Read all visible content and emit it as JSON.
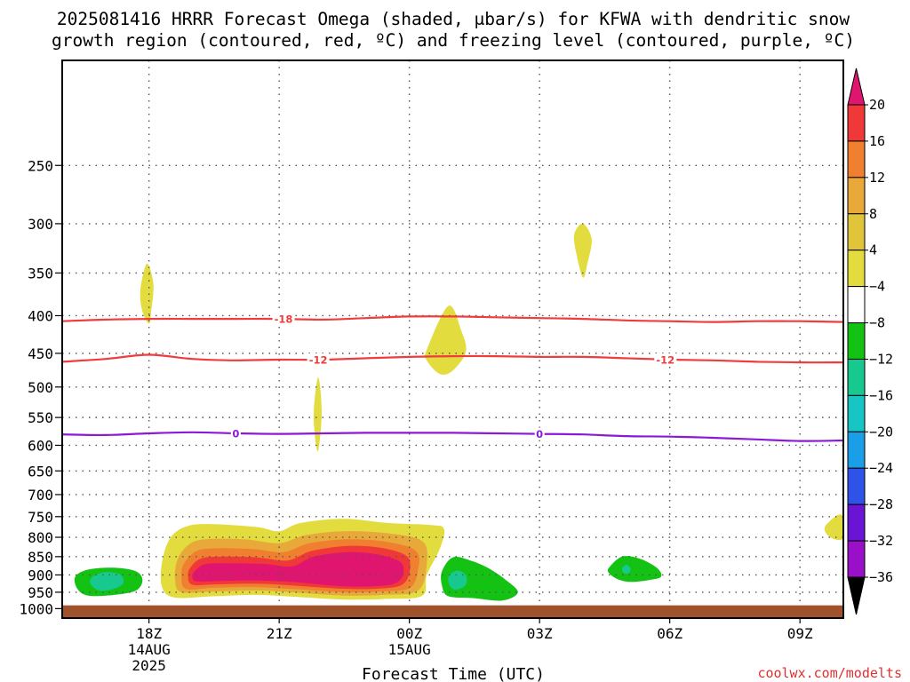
{
  "title_line1": "2025081416 HRRR Forecast Omega (shaded, μbar/s) for KFWA with dendritic snow",
  "title_line2": "growth region (contoured, red, ºC) and freezing level (contoured, purple, ºC)",
  "credit": "coolwx.com/modelts",
  "chart_data": {
    "type": "heatmap",
    "xlabel": "Forecast Time (UTC)",
    "ylabel": "",
    "x_ticks": [
      {
        "hour": 2,
        "label": "18Z",
        "sub1": "14AUG",
        "sub2": "2025"
      },
      {
        "hour": 5,
        "label": "21Z",
        "sub1": "",
        "sub2": ""
      },
      {
        "hour": 8,
        "label": "00Z",
        "sub1": "15AUG",
        "sub2": ""
      },
      {
        "hour": 11,
        "label": "03Z",
        "sub1": "",
        "sub2": ""
      },
      {
        "hour": 14,
        "label": "06Z",
        "sub1": "",
        "sub2": ""
      },
      {
        "hour": 17,
        "label": "09Z",
        "sub1": "",
        "sub2": ""
      }
    ],
    "xlim_hours": [
      0,
      18
    ],
    "y_axis": "pressure (hPa), log scale, inverted",
    "ylim_hPa": [
      1030,
      180
    ],
    "y_ticks": [
      250,
      300,
      350,
      400,
      450,
      500,
      550,
      600,
      650,
      700,
      750,
      800,
      850,
      900,
      950,
      1000
    ],
    "ground_below_hPa": 990,
    "grid": true,
    "colorbar": {
      "unit": "μbar/s",
      "labels": [
        "20",
        "16",
        "12",
        "8",
        "4",
        "−4",
        "−8",
        "−12",
        "−16",
        "−20",
        "−24",
        "−28",
        "−32",
        "−36"
      ],
      "colors": [
        "#e0156f",
        "#f03838",
        "#f07f2f",
        "#e8a93a",
        "#e0c53a",
        "#e3dc3e",
        "#ffffff",
        "#13c213",
        "#17c98e",
        "#18c5c5",
        "#1b9ee8",
        "#2f52e8",
        "#6a15d5",
        "#9a10c8",
        "#a9a9a9",
        "#000000"
      ]
    },
    "contours": [
      {
        "label": "-18",
        "color": "#f03c3c",
        "points": [
          [
            0,
            407
          ],
          [
            1,
            405
          ],
          [
            2,
            404
          ],
          [
            3,
            404
          ],
          [
            4,
            404
          ],
          [
            5,
            404
          ],
          [
            6,
            405
          ],
          [
            7,
            403
          ],
          [
            8,
            401
          ],
          [
            9,
            401
          ],
          [
            10,
            402
          ],
          [
            11,
            403
          ],
          [
            12,
            404
          ],
          [
            13,
            406
          ],
          [
            14,
            407
          ],
          [
            15,
            408
          ],
          [
            16,
            407
          ],
          [
            17,
            407
          ],
          [
            18,
            408
          ]
        ],
        "label_at": [
          5.1
        ]
      },
      {
        "label": "-12",
        "color": "#f03c3c",
        "points": [
          [
            0,
            462
          ],
          [
            1,
            458
          ],
          [
            2,
            452
          ],
          [
            3,
            458
          ],
          [
            4,
            460
          ],
          [
            5,
            459
          ],
          [
            6,
            459
          ],
          [
            7,
            457
          ],
          [
            8,
            455
          ],
          [
            9,
            454
          ],
          [
            10,
            454
          ],
          [
            11,
            455
          ],
          [
            12,
            455
          ],
          [
            13,
            457
          ],
          [
            14,
            459
          ],
          [
            15,
            460
          ],
          [
            16,
            462
          ],
          [
            17,
            463
          ],
          [
            18,
            463
          ]
        ],
        "label_at": [
          5.9,
          13.9
        ]
      },
      {
        "label": "0",
        "color": "#8b1ad6",
        "points": [
          [
            0,
            580
          ],
          [
            1,
            581
          ],
          [
            2,
            578
          ],
          [
            3,
            576
          ],
          [
            4,
            578
          ],
          [
            5,
            579
          ],
          [
            6,
            578
          ],
          [
            7,
            577
          ],
          [
            8,
            577
          ],
          [
            9,
            577
          ],
          [
            10,
            578
          ],
          [
            11,
            579
          ],
          [
            12,
            580
          ],
          [
            13,
            583
          ],
          [
            14,
            584
          ],
          [
            15,
            586
          ],
          [
            16,
            589
          ],
          [
            17,
            592
          ],
          [
            18,
            591
          ]
        ],
        "label_at": [
          4.0,
          11.0
        ]
      }
    ],
    "omega_regions": [
      {
        "level": "4",
        "color": "#e3dc3e",
        "points": [
          [
            1.8,
            370
          ],
          [
            1.95,
            340
          ],
          [
            2.1,
            362
          ],
          [
            2.05,
            395
          ],
          [
            2.0,
            410
          ],
          [
            1.85,
            395
          ]
        ]
      },
      {
        "level": "4",
        "color": "#e3dc3e",
        "points": [
          [
            5.8,
            535
          ],
          [
            5.9,
            485
          ],
          [
            5.98,
            540
          ],
          [
            5.9,
            610
          ],
          [
            5.82,
            580
          ]
        ]
      },
      {
        "level": "4",
        "color": "#e3dc3e",
        "points": [
          [
            8.4,
            445
          ],
          [
            8.9,
            388
          ],
          [
            9.2,
            420
          ],
          [
            9.3,
            448
          ],
          [
            9.0,
            475
          ],
          [
            8.7,
            480
          ],
          [
            8.4,
            460
          ]
        ]
      },
      {
        "level": "4",
        "color": "#e3dc3e",
        "points": [
          [
            11.8,
            310
          ],
          [
            12.0,
            300
          ],
          [
            12.2,
            315
          ],
          [
            12.1,
            340
          ],
          [
            12.0,
            355
          ],
          [
            11.85,
            330
          ]
        ]
      },
      {
        "level": "4",
        "color": "#e3dc3e",
        "points": [
          [
            17.6,
            770
          ],
          [
            17.95,
            745
          ],
          [
            18,
            800
          ],
          [
            17.8,
            805
          ],
          [
            17.6,
            790
          ]
        ]
      },
      {
        "level": "4",
        "color": "#e3dc3e",
        "points": [
          [
            2.3,
            865
          ],
          [
            2.5,
            800
          ],
          [
            2.9,
            772
          ],
          [
            3.5,
            768
          ],
          [
            4.5,
            775
          ],
          [
            5.0,
            785
          ],
          [
            5.5,
            765
          ],
          [
            6.5,
            755
          ],
          [
            7.5,
            765
          ],
          [
            8.5,
            770
          ],
          [
            8.8,
            780
          ],
          [
            8.7,
            830
          ],
          [
            8.4,
            900
          ],
          [
            8.3,
            960
          ],
          [
            7.5,
            970
          ],
          [
            6.5,
            972
          ],
          [
            5.5,
            965
          ],
          [
            4.5,
            958
          ],
          [
            3.5,
            962
          ],
          [
            2.6,
            966
          ],
          [
            2.3,
            935
          ]
        ]
      },
      {
        "level": "8",
        "color": "#e8a93a",
        "points": [
          [
            2.65,
            860
          ],
          [
            2.9,
            820
          ],
          [
            3.3,
            805
          ],
          [
            4.2,
            805
          ],
          [
            5.0,
            815
          ],
          [
            5.6,
            795
          ],
          [
            6.5,
            785
          ],
          [
            7.5,
            790
          ],
          [
            8.3,
            810
          ],
          [
            8.4,
            870
          ],
          [
            8.2,
            945
          ],
          [
            7.4,
            958
          ],
          [
            6.5,
            960
          ],
          [
            5.5,
            952
          ],
          [
            4.5,
            945
          ],
          [
            3.5,
            948
          ],
          [
            2.75,
            950
          ],
          [
            2.6,
            915
          ]
        ]
      },
      {
        "level": "12",
        "color": "#f07f2f",
        "points": [
          [
            2.8,
            870
          ],
          [
            3.1,
            835
          ],
          [
            3.6,
            828
          ],
          [
            4.4,
            830
          ],
          [
            5.1,
            838
          ],
          [
            5.7,
            815
          ],
          [
            6.6,
            805
          ],
          [
            7.5,
            812
          ],
          [
            8.15,
            835
          ],
          [
            8.2,
            885
          ],
          [
            8.0,
            938
          ],
          [
            7.3,
            948
          ],
          [
            6.5,
            950
          ],
          [
            5.5,
            942
          ],
          [
            4.5,
            935
          ],
          [
            3.5,
            937
          ],
          [
            2.85,
            940
          ],
          [
            2.75,
            905
          ]
        ]
      },
      {
        "level": "16",
        "color": "#f03838",
        "points": [
          [
            2.95,
            880
          ],
          [
            3.2,
            855
          ],
          [
            3.7,
            850
          ],
          [
            4.5,
            852
          ],
          [
            5.2,
            860
          ],
          [
            5.75,
            835
          ],
          [
            6.6,
            822
          ],
          [
            7.4,
            828
          ],
          [
            7.95,
            850
          ],
          [
            8.0,
            895
          ],
          [
            7.8,
            930
          ],
          [
            7.2,
            940
          ],
          [
            6.5,
            940
          ],
          [
            5.5,
            932
          ],
          [
            4.5,
            925
          ],
          [
            3.5,
            927
          ],
          [
            3.0,
            928
          ],
          [
            2.9,
            905
          ]
        ]
      },
      {
        "level": "20",
        "color": "#e0156f",
        "points": [
          [
            3.05,
            890
          ],
          [
            3.3,
            870
          ],
          [
            3.9,
            868
          ],
          [
            4.7,
            870
          ],
          [
            5.3,
            876
          ],
          [
            5.8,
            850
          ],
          [
            6.6,
            838
          ],
          [
            7.3,
            845
          ],
          [
            7.8,
            865
          ],
          [
            7.85,
            900
          ],
          [
            7.65,
            925
          ],
          [
            7.1,
            933
          ],
          [
            6.4,
            932
          ],
          [
            5.5,
            922
          ],
          [
            4.6,
            916
          ],
          [
            3.7,
            917
          ],
          [
            3.1,
            918
          ],
          [
            3.0,
            905
          ]
        ]
      },
      {
        "level": "-4",
        "color": "#13c213",
        "points": [
          [
            0.3,
            905
          ],
          [
            0.6,
            885
          ],
          [
            1.2,
            880
          ],
          [
            1.7,
            890
          ],
          [
            1.85,
            915
          ],
          [
            1.7,
            945
          ],
          [
            1.2,
            958
          ],
          [
            0.6,
            960
          ],
          [
            0.35,
            940
          ]
        ]
      },
      {
        "level": "-8",
        "color": "#17c98e",
        "points": [
          [
            0.7,
            905
          ],
          [
            1.0,
            892
          ],
          [
            1.35,
            900
          ],
          [
            1.4,
            925
          ],
          [
            1.15,
            942
          ],
          [
            0.85,
            945
          ],
          [
            0.65,
            925
          ]
        ]
      },
      {
        "level": "-4",
        "color": "#13c213",
        "points": [
          [
            8.75,
            890
          ],
          [
            9.0,
            852
          ],
          [
            9.4,
            860
          ],
          [
            9.8,
            880
          ],
          [
            10.2,
            912
          ],
          [
            10.5,
            950
          ],
          [
            10.15,
            975
          ],
          [
            9.5,
            968
          ],
          [
            8.9,
            962
          ],
          [
            8.75,
            930
          ]
        ]
      },
      {
        "level": "-8",
        "color": "#17c98e",
        "points": [
          [
            8.9,
            905
          ],
          [
            9.1,
            888
          ],
          [
            9.3,
            900
          ],
          [
            9.3,
            928
          ],
          [
            9.1,
            942
          ],
          [
            8.95,
            935
          ]
        ]
      },
      {
        "level": "-4",
        "color": "#13c213",
        "points": [
          [
            12.6,
            880
          ],
          [
            12.9,
            850
          ],
          [
            13.3,
            855
          ],
          [
            13.7,
            880
          ],
          [
            13.8,
            905
          ],
          [
            13.5,
            915
          ],
          [
            13.1,
            920
          ],
          [
            12.8,
            912
          ],
          [
            12.6,
            895
          ]
        ]
      },
      {
        "level": "-8",
        "color": "#17c98e",
        "points": [
          [
            12.9,
            882
          ],
          [
            13.0,
            872
          ],
          [
            13.1,
            882
          ],
          [
            13.05,
            895
          ],
          [
            12.95,
            895
          ]
        ]
      }
    ]
  }
}
